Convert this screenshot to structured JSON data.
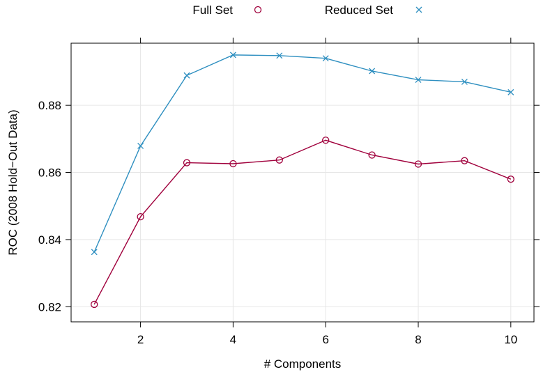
{
  "chart_data": {
    "type": "line",
    "title": "",
    "xlabel": "# Components",
    "ylabel": "ROC (2008 Hold−Out Data)",
    "x": [
      1,
      2,
      3,
      4,
      5,
      6,
      7,
      8,
      9,
      10
    ],
    "xlim": [
      0.5,
      10.5
    ],
    "ylim": [
      0.8155,
      0.8985
    ],
    "xticks": [
      2,
      4,
      6,
      8,
      10
    ],
    "yticks": [
      0.82,
      0.84,
      0.86,
      0.88
    ],
    "ytick_labels": [
      "0.82",
      "0.84",
      "0.86",
      "0.88"
    ],
    "grid": true,
    "legend_position": "top",
    "series": [
      {
        "name": "Full Set",
        "marker": "circle",
        "color": "#a0003c",
        "values": [
          0.8207,
          0.8468,
          0.8629,
          0.8626,
          0.8637,
          0.8696,
          0.8652,
          0.8625,
          0.8635,
          0.858
        ]
      },
      {
        "name": "Reduced Set",
        "marker": "x",
        "color": "#2e8fc0",
        "values": [
          0.8363,
          0.8679,
          0.8889,
          0.895,
          0.8948,
          0.894,
          0.8902,
          0.8876,
          0.887,
          0.8839
        ]
      }
    ]
  }
}
